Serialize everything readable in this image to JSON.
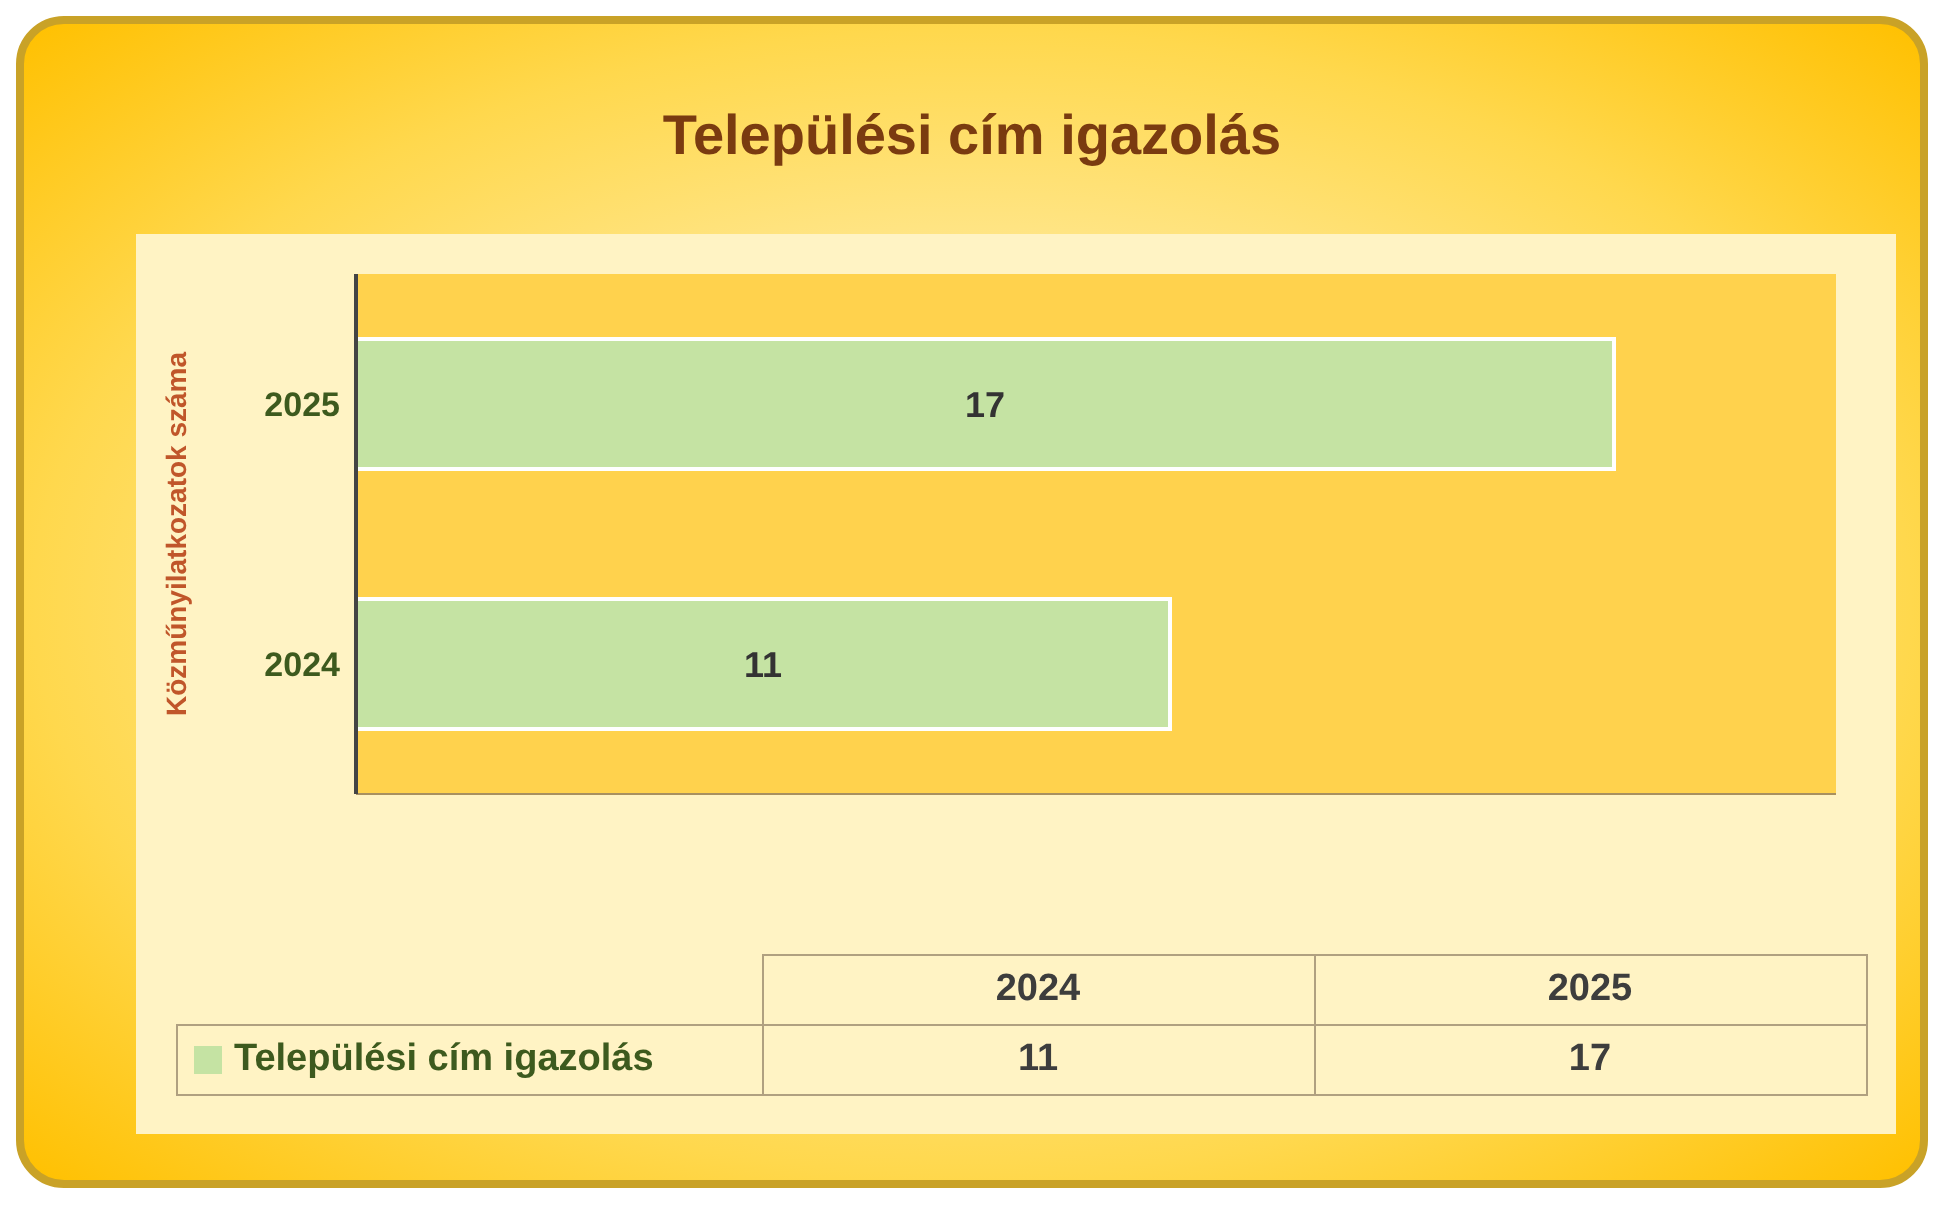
{
  "chart_data": {
    "type": "bar",
    "orientation": "horizontal",
    "title": "Települési cím igazolás",
    "ylabel": "Közműnyilatkozatok száma",
    "categories": [
      "2025",
      "2024"
    ],
    "series": [
      {
        "name": "Települési cím igazolás",
        "color": "#c5e3a3",
        "values": [
          17,
          11
        ]
      }
    ],
    "annotations": [
      "11",
      "17"
    ],
    "data_labels": true,
    "tick_labels": "y",
    "legend": "bottom"
  }
}
